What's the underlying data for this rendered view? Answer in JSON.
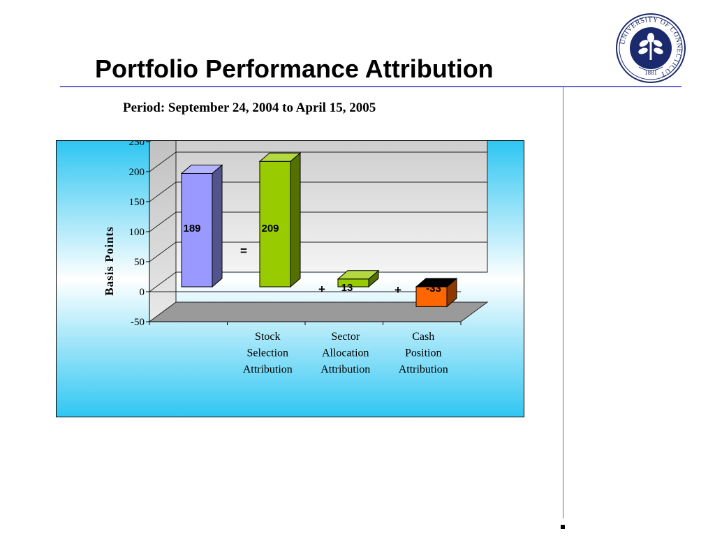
{
  "slide": {
    "title": "Portfolio Performance Attribution",
    "subtitle": "Period: September 24, 2004 to April 15, 2005"
  },
  "seal": {
    "ring_text": "UNIVERSITY OF CONNECTICUT",
    "year": "1881",
    "color": "#1a2a6c"
  },
  "chart_data": {
    "type": "bar",
    "ylabel": "Basis Points",
    "xlabel": "",
    "ylim": [
      -50,
      250
    ],
    "yticks": [
      -50,
      0,
      50,
      100,
      150,
      200,
      250
    ],
    "grid": true,
    "categories": [
      "",
      "Stock Selection Attribution",
      "Sector Allocation Attribution",
      "Cash Position Attribution"
    ],
    "category_lines": [
      [],
      [
        "Stock",
        "Selection",
        "Attribution"
      ],
      [
        "Sector",
        "Allocation",
        "Attribution"
      ],
      [
        "Cash",
        "Position",
        "Attribution"
      ]
    ],
    "values": [
      189,
      209,
      13,
      -33
    ],
    "data_labels": [
      "189",
      "209",
      "13",
      "-33"
    ],
    "bar_colors": [
      "#9999ff",
      "#99cc00",
      "#99cc00",
      "#ff6600"
    ],
    "operators": [
      "=",
      "+",
      "+"
    ]
  }
}
